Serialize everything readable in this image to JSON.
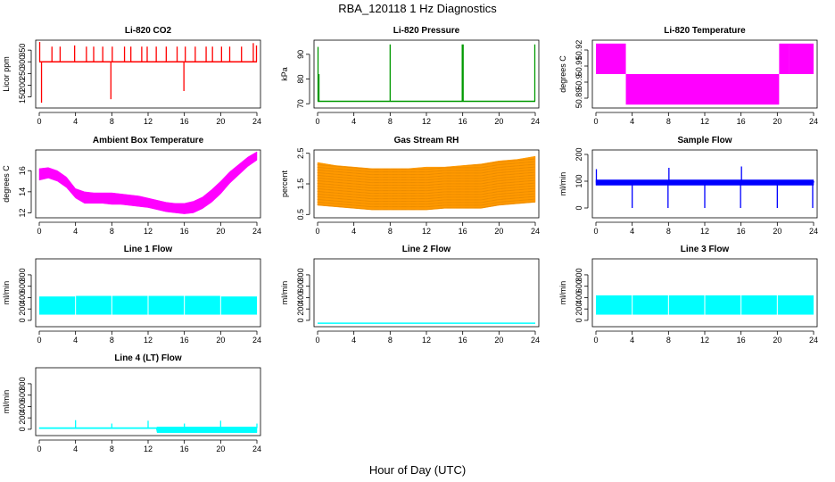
{
  "figure": {
    "title": "RBA_120118  1 Hz Diagnostics",
    "xlabel": "Hour of Day (UTC)"
  },
  "chart_data": [
    {
      "id": "co2",
      "type": "line",
      "title": "Li-820 CO2",
      "ylabel": "Licor ppm",
      "color": "#ff0000",
      "xlim": [
        0,
        24
      ],
      "ylim": [
        110,
        385
      ],
      "xticks": [
        0,
        4,
        8,
        12,
        16,
        20,
        24
      ],
      "yticks": [
        150,
        200,
        250,
        300,
        350
      ],
      "series": [
        {
          "name": "baseline",
          "style": "line",
          "x": [
            0,
            24
          ],
          "y": [
            300,
            300
          ]
        },
        {
          "name": "spikes",
          "style": "spikes",
          "base": 300,
          "x": [
            0.05,
            0.25,
            1.4,
            2.3,
            3.9,
            5.2,
            6.0,
            7.0,
            7.9,
            8.05,
            9.4,
            10.1,
            11.3,
            11.9,
            12.9,
            14.0,
            15.2,
            15.95,
            16.1,
            17.2,
            18.4,
            19.1,
            20.1,
            21.0,
            22.3,
            23.6,
            23.95
          ],
          "y": [
            385,
            125,
            365,
            365,
            370,
            365,
            365,
            365,
            140,
            365,
            365,
            365,
            365,
            365,
            365,
            365,
            365,
            175,
            365,
            365,
            365,
            365,
            365,
            365,
            365,
            380,
            370
          ]
        }
      ]
    },
    {
      "id": "pressure",
      "type": "line",
      "title": "Li-820 Pressure",
      "ylabel": "kPa",
      "color": "#009900",
      "xlim": [
        0,
        24
      ],
      "ylim": [
        69,
        95
      ],
      "xticks": [
        0,
        4,
        8,
        12,
        16,
        20,
        24
      ],
      "yticks": [
        70,
        80,
        90
      ],
      "series": [
        {
          "name": "baseline",
          "style": "line",
          "x": [
            0,
            24
          ],
          "y": [
            71,
            71
          ]
        },
        {
          "name": "spikes",
          "style": "spikes",
          "base": 71,
          "x": [
            0.05,
            0.15,
            8.0,
            15.95,
            16.05,
            23.95
          ],
          "y": [
            93,
            82,
            94,
            94,
            94,
            94
          ]
        }
      ]
    },
    {
      "id": "temp",
      "type": "area",
      "title": "Li-820 Temperature",
      "ylabel": "degrees C",
      "color": "#ff00ff",
      "xlim": [
        0,
        24
      ],
      "ylim": [
        50.885,
        50.925
      ],
      "xticks": [
        0,
        4,
        8,
        12,
        16,
        20,
        24
      ],
      "yticks": [
        50.89,
        50.9,
        50.91,
        50.92
      ],
      "series": [
        {
          "name": "band",
          "style": "bands",
          "x0": [
            0,
            3.3,
            20.2,
            21.3
          ],
          "x1": [
            3.3,
            20.2,
            21.3,
            24
          ],
          "ymin": [
            50.905,
            50.886,
            50.905,
            50.905
          ],
          "ymax": [
            50.924,
            50.905,
            50.924,
            50.924
          ]
        }
      ]
    },
    {
      "id": "ambient",
      "type": "area",
      "title": "Ambient Box Temperature",
      "ylabel": "degrees C",
      "color": "#ff00ff",
      "xlim": [
        0,
        24
      ],
      "ylim": [
        11.7,
        17.8
      ],
      "xticks": [
        0,
        4,
        8,
        12,
        16,
        20,
        24
      ],
      "yticks": [
        12,
        14,
        16
      ],
      "series": [
        {
          "name": "band",
          "style": "envelope",
          "x": [
            0,
            1,
            2,
            3,
            4,
            5,
            6,
            7,
            8,
            9,
            10,
            11,
            12,
            13,
            14,
            15,
            16,
            17,
            18,
            19,
            20,
            21,
            22,
            23,
            24
          ],
          "ymin": [
            15.1,
            15.3,
            15.0,
            14.4,
            13.4,
            12.9,
            12.9,
            12.9,
            12.8,
            12.8,
            12.7,
            12.6,
            12.5,
            12.3,
            12.1,
            12.0,
            11.9,
            12.0,
            12.4,
            13.0,
            13.8,
            14.8,
            15.6,
            16.4,
            17.0
          ],
          "ymax": [
            16.2,
            16.3,
            16.0,
            15.4,
            14.3,
            14.0,
            13.9,
            13.9,
            13.9,
            13.8,
            13.7,
            13.6,
            13.4,
            13.2,
            13.0,
            12.9,
            12.9,
            13.1,
            13.5,
            14.2,
            15.0,
            15.9,
            16.6,
            17.3,
            17.8
          ]
        }
      ]
    },
    {
      "id": "rh",
      "type": "area",
      "title": "Gas Stream RH",
      "ylabel": "percent",
      "color": "#ff9900",
      "xlim": [
        0,
        24
      ],
      "ylim": [
        0.45,
        2.55
      ],
      "xticks": [
        0,
        4,
        8,
        12,
        16,
        20,
        24
      ],
      "yticks": [
        0.5,
        1.5,
        2.5
      ],
      "series": [
        {
          "name": "band",
          "style": "envelope",
          "x": [
            0,
            2,
            4,
            6,
            8,
            10,
            12,
            14,
            16,
            18,
            20,
            22,
            24
          ],
          "ymin": [
            0.8,
            0.75,
            0.7,
            0.65,
            0.65,
            0.65,
            0.65,
            0.7,
            0.7,
            0.7,
            0.8,
            0.85,
            0.9
          ],
          "ymax": [
            2.2,
            2.1,
            2.05,
            2.0,
            2.0,
            2.0,
            2.05,
            2.05,
            2.1,
            2.15,
            2.25,
            2.3,
            2.4
          ]
        }
      ]
    },
    {
      "id": "sample",
      "type": "line",
      "title": "Sample Flow",
      "ylabel": "ml/min",
      "color": "#0000ff",
      "xlim": [
        0,
        24
      ],
      "ylim": [
        -30,
        210
      ],
      "xticks": [
        0,
        4,
        8,
        12,
        16,
        20,
        24
      ],
      "yticks": [
        0,
        100,
        200
      ],
      "series": [
        {
          "name": "band",
          "style": "envelope",
          "x": [
            0,
            24
          ],
          "ymin": [
            85,
            85
          ],
          "ymax": [
            105,
            105
          ]
        },
        {
          "name": "spikes",
          "style": "spikes",
          "base": 95,
          "x": [
            0.05,
            4.0,
            7.95,
            8.05,
            12.0,
            15.95,
            16.05,
            20.0,
            23.9,
            24.0
          ],
          "y": [
            145,
            0,
            0,
            150,
            0,
            0,
            155,
            0,
            0,
            100
          ]
        }
      ]
    },
    {
      "id": "line1",
      "type": "area",
      "title": "Line 1 Flow",
      "ylabel": "ml/min",
      "color": "#00ffff",
      "xlim": [
        0,
        24
      ],
      "ylim": [
        -80,
        1050
      ],
      "xticks": [
        0,
        4,
        8,
        12,
        16,
        20,
        24
      ],
      "yticks": [
        0,
        200,
        400,
        600,
        800
      ],
      "series": [
        {
          "name": "band",
          "style": "bands",
          "x0": [
            0,
            4.05,
            8.05,
            12.05,
            16.05,
            20.05
          ],
          "x1": [
            3.95,
            7.95,
            11.95,
            15.95,
            19.95,
            24.0
          ],
          "ymin": [
            100,
            100,
            100,
            100,
            100,
            100
          ],
          "ymax": [
            420,
            430,
            430,
            430,
            430,
            420
          ]
        }
      ]
    },
    {
      "id": "line2",
      "type": "line",
      "title": "Line 2 Flow",
      "ylabel": "ml/min",
      "color": "#00ffff",
      "xlim": [
        0,
        24
      ],
      "ylim": [
        -80,
        1050
      ],
      "xticks": [
        0,
        4,
        8,
        12,
        16,
        20,
        24
      ],
      "yticks": [
        0,
        200,
        400,
        600,
        800
      ],
      "series": [
        {
          "name": "baseline",
          "style": "line",
          "x": [
            0,
            24
          ],
          "y": [
            -50,
            -50
          ]
        }
      ]
    },
    {
      "id": "line3",
      "type": "area",
      "title": "Line 3 Flow",
      "ylabel": "ml/min",
      "color": "#00ffff",
      "xlim": [
        0,
        24
      ],
      "ylim": [
        -80,
        1050
      ],
      "xticks": [
        0,
        4,
        8,
        12,
        16,
        20,
        24
      ],
      "yticks": [
        0,
        200,
        400,
        600,
        800
      ],
      "series": [
        {
          "name": "band",
          "style": "bands",
          "x0": [
            0,
            4.05,
            8.05,
            12.05,
            16.05,
            20.05
          ],
          "x1": [
            3.95,
            7.95,
            11.95,
            15.95,
            19.95,
            24.0
          ],
          "ymin": [
            100,
            100,
            100,
            100,
            100,
            100
          ],
          "ymax": [
            440,
            440,
            440,
            440,
            440,
            440
          ]
        }
      ]
    },
    {
      "id": "line4",
      "type": "line",
      "title": "Line 4 (LT) Flow",
      "ylabel": "ml/min",
      "color": "#00ffff",
      "xlim": [
        0,
        24
      ],
      "ylim": [
        -80,
        1050
      ],
      "xticks": [
        0,
        4,
        8,
        12,
        16,
        20,
        24
      ],
      "yticks": [
        0,
        200,
        400,
        600,
        800
      ],
      "series": [
        {
          "name": "band",
          "style": "envelope",
          "x": [
            0,
            12.9,
            13.0,
            24
          ],
          "ymin": [
            10,
            10,
            -60,
            -60
          ],
          "ymax": [
            30,
            30,
            40,
            40
          ]
        },
        {
          "name": "spikes",
          "style": "spikes",
          "base": 20,
          "x": [
            4.0,
            8.0,
            12.0,
            16.0,
            20.0,
            24.0
          ],
          "y": [
            160,
            100,
            150,
            100,
            150,
            100
          ]
        }
      ]
    }
  ]
}
